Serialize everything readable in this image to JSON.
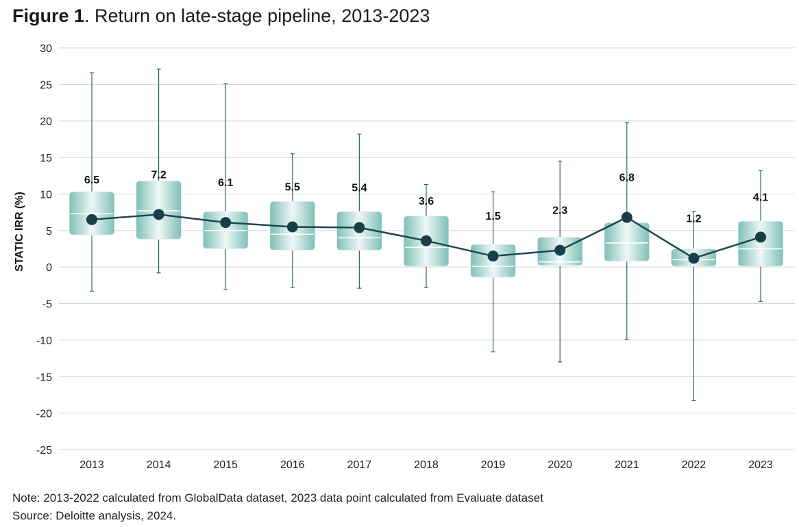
{
  "title": {
    "figure": "Figure 1",
    "rest": ". Return on late-stage pipeline, 2013-2023"
  },
  "notes": {
    "note": "Note: 2013-2022 calculated from GlobalData dataset, 2023 data point calculated from Evaluate dataset",
    "source": "Source: Deloitte analysis, 2024."
  },
  "colors": {
    "box": "#8ec7c0",
    "box_edge": "#e9f4f2",
    "line": "#1f4650",
    "marker": "#173f4a",
    "whisker": "#2f6470",
    "grid": "#d4d4d4"
  },
  "chart_data": {
    "type": "box",
    "title": "Return on late-stage pipeline, 2013-2023",
    "ylabel": "STATIC IRR (%)",
    "ylim": [
      -25,
      30
    ],
    "yticks": [
      "30",
      "25",
      "20",
      "15",
      "10",
      "5",
      "0",
      "-5",
      "-10",
      "-15",
      "-20",
      "-25"
    ],
    "grid": true,
    "categories": [
      "2013",
      "2014",
      "2015",
      "2016",
      "2017",
      "2018",
      "2019",
      "2020",
      "2021",
      "2022",
      "2023"
    ],
    "series": [
      {
        "values": [
          6.5,
          7.2,
          6.1,
          5.5,
          5.4,
          3.6,
          1.5,
          2.3,
          6.8,
          1.2,
          4.1
        ],
        "labels": [
          "6.5",
          "7.2",
          "6.1",
          "5.5",
          "5.4",
          "3.6",
          "1.5",
          "2.3",
          "6.8",
          "1.2",
          "4.1"
        ]
      }
    ],
    "boxes": [
      {
        "min": -3.3,
        "q1": 4.4,
        "median": 7.3,
        "q3": 10.3,
        "max": 26.6
      },
      {
        "min": -0.8,
        "q1": 3.8,
        "median": 7.7,
        "q3": 11.8,
        "max": 27.1
      },
      {
        "min": -3.1,
        "q1": 2.5,
        "median": 5.0,
        "q3": 7.6,
        "max": 25.1
      },
      {
        "min": -2.8,
        "q1": 2.3,
        "median": 4.5,
        "q3": 9.0,
        "max": 15.5
      },
      {
        "min": -2.9,
        "q1": 2.3,
        "median": 4.0,
        "q3": 7.6,
        "max": 18.2
      },
      {
        "min": -2.8,
        "q1": 0.1,
        "median": 2.7,
        "q3": 7.0,
        "max": 11.3
      },
      {
        "min": -11.6,
        "q1": -1.4,
        "median": 0.1,
        "q3": 3.1,
        "max": 10.3
      },
      {
        "min": -13.0,
        "q1": 0.2,
        "median": 0.7,
        "q3": 4.1,
        "max": 14.5
      },
      {
        "min": -9.9,
        "q1": 0.8,
        "median": 3.3,
        "q3": 6.1,
        "max": 19.8
      },
      {
        "min": -18.3,
        "q1": 0.1,
        "median": 1.0,
        "q3": 2.5,
        "max": 7.6
      },
      {
        "min": -4.7,
        "q1": 0.1,
        "median": 2.5,
        "q3": 6.3,
        "max": 13.2
      }
    ]
  }
}
